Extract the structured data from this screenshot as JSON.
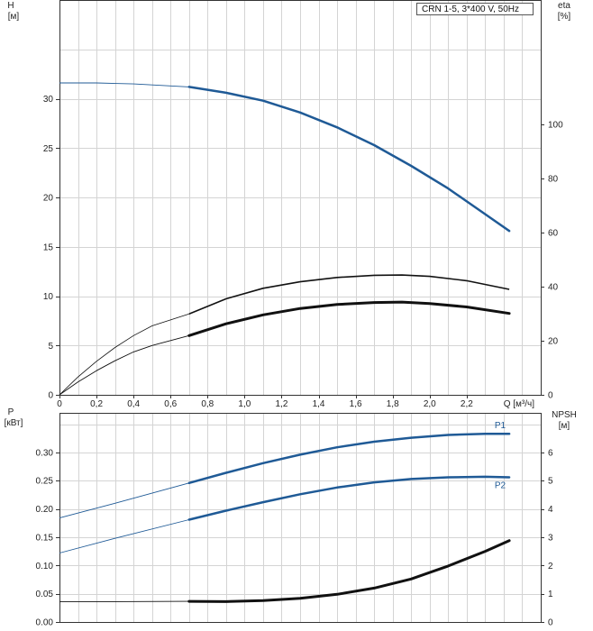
{
  "model_label": "CRN 1-5, 3*400 V, 50Hz",
  "colors": {
    "blue": "#1f5a96",
    "black": "#111111",
    "dark": "#222222"
  },
  "chart_data": [
    {
      "type": "line",
      "x_axis": {
        "label": "Q [м³/ч]",
        "range": [
          0,
          2.6
        ],
        "ticks": [
          0,
          0.2,
          0.4,
          0.6,
          0.8,
          1.0,
          1.2,
          1.4,
          1.6,
          1.8,
          2.0,
          2.2
        ],
        "tick_labels": [
          "0",
          "0,2",
          "0,4",
          "0,6",
          "0,8",
          "1,0",
          "1,2",
          "1,4",
          "1,6",
          "1,8",
          "2,0",
          "2,2"
        ]
      },
      "y_left": {
        "label_top": "H",
        "label_unit": "[м]",
        "range": [
          0,
          40
        ],
        "ticks": [
          0,
          5,
          10,
          15,
          20,
          25,
          30
        ]
      },
      "y_right": {
        "label_top": "eta",
        "label_unit": "[%]",
        "range": [
          0,
          146
        ],
        "ticks": [
          0,
          20,
          40,
          60,
          80,
          100
        ]
      },
      "grid": true,
      "series": [
        {
          "axis": "left",
          "color": "blue",
          "op_start": 0.7,
          "x": [
            0,
            0.2,
            0.4,
            0.7,
            0.9,
            1.1,
            1.3,
            1.5,
            1.7,
            1.9,
            2.1,
            2.3,
            2.43
          ],
          "y": [
            31.6,
            31.6,
            31.5,
            31.2,
            30.6,
            29.8,
            28.6,
            27.1,
            25.3,
            23.2,
            20.9,
            18.3,
            16.6
          ]
        },
        {
          "axis": "right",
          "color": "black",
          "x": [
            0,
            0.1,
            0.2,
            0.3,
            0.4,
            0.5,
            0.7,
            0.9,
            1.1,
            1.3,
            1.5,
            1.7,
            1.85,
            2.0,
            2.2,
            2.43
          ],
          "y": [
            0,
            6.6,
            12.4,
            17.5,
            21.9,
            25.5,
            29.9,
            35.5,
            39.4,
            41.8,
            43.4,
            44.2,
            44.3,
            43.8,
            42.2,
            39.0
          ]
        },
        {
          "axis": "left",
          "color": "black",
          "op_start": 0.7,
          "bold": true,
          "x": [
            0,
            0.1,
            0.2,
            0.3,
            0.4,
            0.5,
            0.7,
            0.9,
            1.1,
            1.3,
            1.5,
            1.7,
            1.85,
            2.0,
            2.2,
            2.43
          ],
          "y": [
            0,
            1.3,
            2.45,
            3.45,
            4.35,
            5.0,
            6.0,
            7.2,
            8.1,
            8.75,
            9.15,
            9.35,
            9.4,
            9.25,
            8.9,
            8.25
          ]
        }
      ]
    },
    {
      "type": "line",
      "x_axis": {
        "range": [
          0,
          2.6
        ]
      },
      "y_left": {
        "label_top": "P",
        "label_unit": "[кВт]",
        "range": [
          0,
          0.37
        ],
        "ticks": [
          0.0,
          0.05,
          0.1,
          0.15,
          0.2,
          0.25,
          0.3
        ],
        "tick_labels": [
          "0.00",
          "0.05",
          "0.10",
          "0.15",
          "0.20",
          "0.25",
          "0.30"
        ]
      },
      "y_right": {
        "label_top": "NPSH",
        "label_unit": "[м]",
        "range": [
          0,
          7.4
        ],
        "ticks": [
          0,
          1,
          2,
          3,
          4,
          5,
          6
        ]
      },
      "grid": true,
      "series": [
        {
          "name": "P1",
          "axis": "left",
          "color": "blue",
          "op_start": 0.7,
          "x": [
            0,
            0.3,
            0.7,
            0.9,
            1.1,
            1.3,
            1.5,
            1.7,
            1.9,
            2.1,
            2.3,
            2.43
          ],
          "y": [
            0.184,
            0.21,
            0.246,
            0.264,
            0.281,
            0.296,
            0.309,
            0.319,
            0.326,
            0.331,
            0.333,
            0.333
          ]
        },
        {
          "name": "P2",
          "axis": "left",
          "color": "blue",
          "op_start": 0.7,
          "x": [
            0,
            0.3,
            0.7,
            0.9,
            1.1,
            1.3,
            1.5,
            1.7,
            1.9,
            2.1,
            2.3,
            2.43
          ],
          "y": [
            0.122,
            0.148,
            0.181,
            0.197,
            0.212,
            0.226,
            0.238,
            0.247,
            0.253,
            0.256,
            0.257,
            0.256
          ]
        },
        {
          "axis": "right",
          "color": "black",
          "op_start": 0.7,
          "bold": true,
          "x": [
            0,
            0.3,
            0.7,
            0.9,
            1.1,
            1.3,
            1.5,
            1.7,
            1.9,
            2.1,
            2.3,
            2.43
          ],
          "y": [
            0.72,
            0.72,
            0.73,
            0.72,
            0.76,
            0.84,
            0.98,
            1.2,
            1.52,
            1.98,
            2.5,
            2.88
          ]
        }
      ]
    }
  ]
}
